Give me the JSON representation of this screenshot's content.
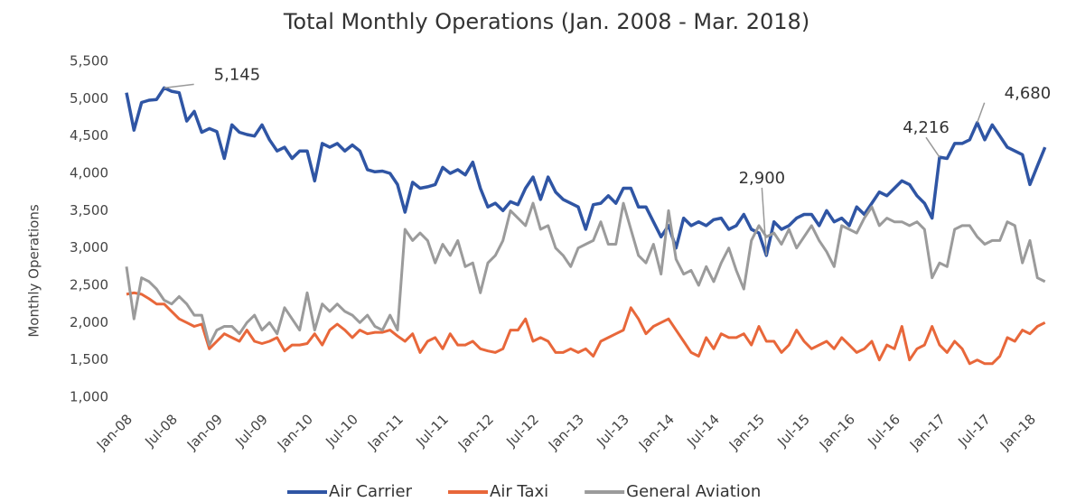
{
  "chart_data": {
    "type": "line",
    "title": "Total Monthly Operations (Jan. 2008 - Mar. 2018)",
    "y_label": "Monthly Operations",
    "categories": [
      "Jan-08",
      null,
      null,
      null,
      null,
      null,
      "Jul-08",
      null,
      null,
      null,
      null,
      null,
      "Jan-09",
      null,
      null,
      null,
      null,
      null,
      "Jul-09",
      null,
      null,
      null,
      null,
      null,
      "Jan-10",
      null,
      null,
      null,
      null,
      null,
      "Jul-10",
      null,
      null,
      null,
      null,
      null,
      "Jan-11",
      null,
      null,
      null,
      null,
      null,
      "Jul-11",
      null,
      null,
      null,
      null,
      null,
      "Jan-12",
      null,
      null,
      null,
      null,
      null,
      "Jul-12",
      null,
      null,
      null,
      null,
      null,
      "Jan-13",
      null,
      null,
      null,
      null,
      null,
      "Jul-13",
      null,
      null,
      null,
      null,
      null,
      "Jan-14",
      null,
      null,
      null,
      null,
      null,
      "Jul-14",
      null,
      null,
      null,
      null,
      null,
      "Jan-15",
      null,
      null,
      null,
      null,
      null,
      "Jul-15",
      null,
      null,
      null,
      null,
      null,
      "Jan-16",
      null,
      null,
      null,
      null,
      null,
      "Jul-16",
      null,
      null,
      null,
      null,
      null,
      "Jan-17",
      null,
      null,
      null,
      null,
      null,
      "Jul-17",
      null,
      null,
      null,
      null,
      null,
      "Jan-18",
      null,
      null
    ],
    "ylim": [
      1000,
      5500
    ],
    "yticks": [
      {
        "value": 1000,
        "label": "1,000"
      },
      {
        "value": 1500,
        "label": "1,500"
      },
      {
        "value": 2000,
        "label": "2,000"
      },
      {
        "value": 2500,
        "label": "2,500"
      },
      {
        "value": 3000,
        "label": "3,000"
      },
      {
        "value": 3500,
        "label": "3,500"
      },
      {
        "value": 4000,
        "label": "4,000"
      },
      {
        "value": 4500,
        "label": "4,500"
      },
      {
        "value": 5000,
        "label": "5,000"
      },
      {
        "value": 5500,
        "label": "5,500"
      }
    ],
    "legend": "bottom",
    "series": [
      {
        "name": "Air Carrier",
        "color": "#2f55a4",
        "values": [
          5080,
          4580,
          4950,
          4980,
          4990,
          5145,
          5100,
          5080,
          4700,
          4830,
          4550,
          4600,
          4560,
          4200,
          4650,
          4550,
          4520,
          4500,
          4650,
          4450,
          4300,
          4350,
          4200,
          4300,
          4300,
          3900,
          4400,
          4350,
          4400,
          4300,
          4380,
          4300,
          4050,
          4020,
          4030,
          4000,
          3850,
          3480,
          3880,
          3800,
          3820,
          3850,
          4080,
          4000,
          4050,
          3980,
          4150,
          3800,
          3550,
          3600,
          3500,
          3620,
          3580,
          3800,
          3950,
          3650,
          3950,
          3750,
          3650,
          3600,
          3550,
          3250,
          3580,
          3600,
          3700,
          3600,
          3800,
          3800,
          3550,
          3550,
          3350,
          3150,
          3300,
          3000,
          3400,
          3300,
          3350,
          3300,
          3380,
          3400,
          3250,
          3300,
          3450,
          3250,
          3200,
          2900,
          3350,
          3250,
          3300,
          3400,
          3450,
          3450,
          3300,
          3500,
          3350,
          3400,
          3300,
          3550,
          3450,
          3600,
          3750,
          3700,
          3800,
          3900,
          3850,
          3700,
          3600,
          3400,
          4216,
          4200,
          4400,
          4400,
          4450,
          4680,
          4450,
          4650,
          4500,
          4350,
          4300,
          4250,
          3850,
          4100,
          4350
        ],
        "value_labels": [
          null,
          null,
          null,
          null,
          null,
          "5,145",
          null,
          null,
          null,
          null,
          null,
          null,
          null,
          null,
          null,
          null,
          null,
          null,
          null,
          null,
          null,
          null,
          null,
          null,
          null,
          null,
          null,
          null,
          null,
          null,
          null,
          null,
          null,
          null,
          null,
          null,
          null,
          null,
          null,
          null,
          null,
          null,
          null,
          null,
          null,
          null,
          null,
          null,
          null,
          null,
          null,
          null,
          null,
          null,
          null,
          null,
          null,
          null,
          null,
          null,
          null,
          null,
          null,
          null,
          null,
          null,
          null,
          null,
          null,
          null,
          null,
          null,
          null,
          null,
          null,
          null,
          null,
          null,
          null,
          null,
          null,
          null,
          null,
          null,
          null,
          "2,900",
          null,
          null,
          null,
          null,
          null,
          null,
          null,
          null,
          null,
          null,
          null,
          null,
          null,
          null,
          null,
          null,
          null,
          null,
          null,
          null,
          null,
          null,
          "4,216",
          null,
          null,
          null,
          null,
          "4,680",
          null,
          null,
          null,
          null,
          null,
          null,
          null,
          null,
          null
        ]
      },
      {
        "name": "Air Taxi",
        "color": "#e8673a",
        "values": [
          2380,
          2400,
          2380,
          2320,
          2250,
          2250,
          2150,
          2050,
          2000,
          1950,
          1980,
          1650,
          1750,
          1850,
          1800,
          1750,
          1900,
          1750,
          1720,
          1750,
          1800,
          1620,
          1700,
          1700,
          1720,
          1850,
          1700,
          1900,
          1980,
          1900,
          1800,
          1900,
          1850,
          1870,
          1870,
          1900,
          1820,
          1750,
          1850,
          1600,
          1750,
          1800,
          1650,
          1850,
          1700,
          1700,
          1750,
          1650,
          1620,
          1600,
          1650,
          1900,
          1900,
          2050,
          1750,
          1800,
          1750,
          1600,
          1600,
          1650,
          1600,
          1650,
          1550,
          1750,
          1800,
          1850,
          1900,
          2200,
          2050,
          1850,
          1950,
          2000,
          2050,
          1900,
          1750,
          1600,
          1550,
          1800,
          1650,
          1850,
          1800,
          1800,
          1850,
          1700,
          1950,
          1750,
          1750,
          1600,
          1700,
          1900,
          1750,
          1650,
          1700,
          1750,
          1650,
          1800,
          1700,
          1600,
          1650,
          1750,
          1500,
          1700,
          1650,
          1950,
          1500,
          1650,
          1700,
          1950,
          1700,
          1600,
          1750,
          1650,
          1450,
          1500,
          1450,
          1450,
          1550,
          1800,
          1750,
          1900,
          1850,
          1950,
          2000
        ]
      },
      {
        "name": "General Aviation",
        "color": "#9b9b9b",
        "values": [
          2750,
          2050,
          2600,
          2550,
          2450,
          2300,
          2250,
          2350,
          2250,
          2100,
          2100,
          1700,
          1900,
          1950,
          1950,
          1850,
          2000,
          2100,
          1900,
          2000,
          1850,
          2200,
          2050,
          1900,
          2400,
          1900,
          2250,
          2150,
          2250,
          2150,
          2100,
          2000,
          2100,
          1950,
          1900,
          2100,
          1900,
          3250,
          3100,
          3200,
          3100,
          2800,
          3050,
          2900,
          3100,
          2750,
          2800,
          2400,
          2800,
          2900,
          3100,
          3500,
          3400,
          3300,
          3600,
          3250,
          3300,
          3000,
          2900,
          2750,
          3000,
          3050,
          3100,
          3350,
          3050,
          3050,
          3600,
          3250,
          2900,
          2800,
          3050,
          2650,
          3500,
          2850,
          2650,
          2700,
          2500,
          2750,
          2550,
          2800,
          3000,
          2700,
          2450,
          3100,
          3300,
          3150,
          3200,
          3050,
          3250,
          3000,
          3150,
          3300,
          3100,
          2950,
          2750,
          3300,
          3250,
          3200,
          3400,
          3550,
          3300,
          3400,
          3350,
          3350,
          3300,
          3350,
          3250,
          2600,
          2800,
          2750,
          3250,
          3300,
          3300,
          3150,
          3050,
          3100,
          3100,
          3350,
          3300,
          2800,
          3100,
          2600,
          2550
        ]
      }
    ]
  }
}
